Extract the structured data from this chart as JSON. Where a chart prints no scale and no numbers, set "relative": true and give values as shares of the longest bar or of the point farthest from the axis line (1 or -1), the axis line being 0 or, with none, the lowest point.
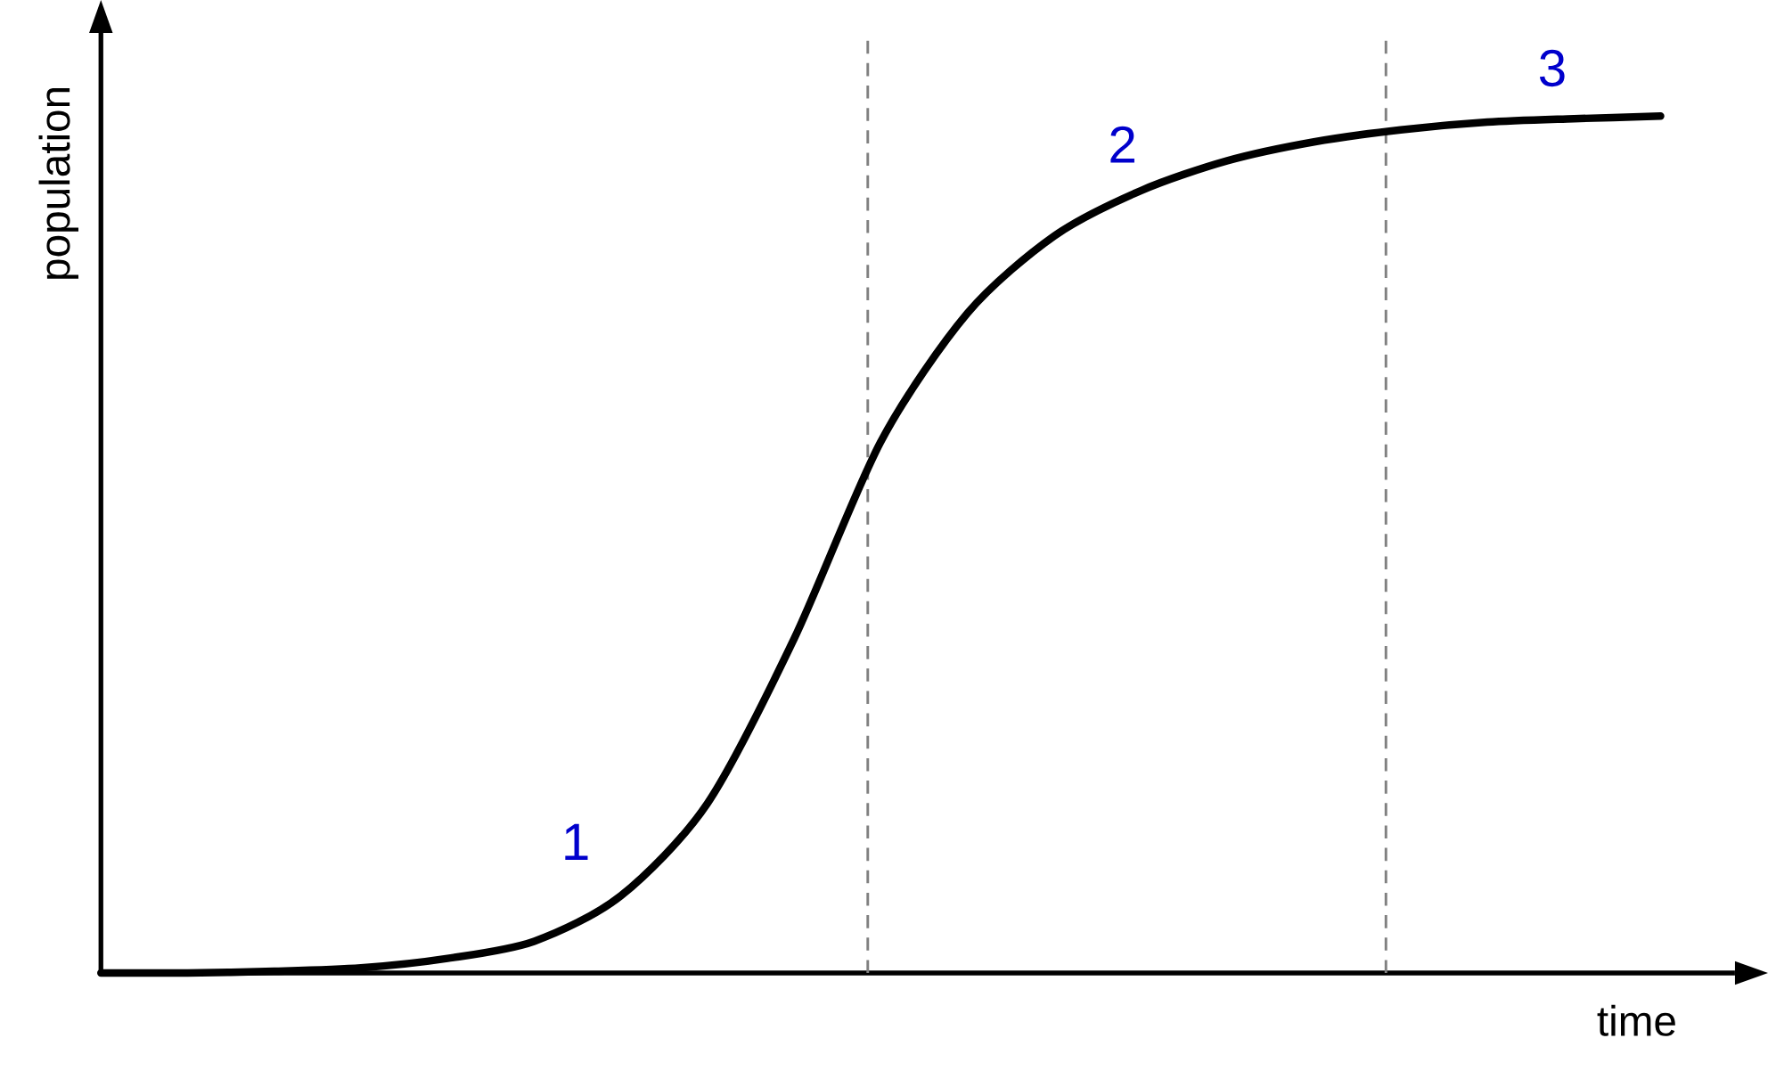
{
  "chart_data": {
    "type": "line",
    "relative": true,
    "xlabel": "time",
    "ylabel": "population",
    "color": "#000000",
    "categories": [
      null,
      null,
      null,
      null,
      null,
      null,
      null,
      null,
      null,
      null,
      null,
      null,
      null,
      null,
      null,
      null,
      null,
      null,
      null
    ],
    "values": [
      0,
      0,
      0.002,
      0.006,
      0.017,
      0.037,
      0.09,
      0.198,
      0.39,
      0.62,
      0.77,
      0.86,
      0.913,
      0.948,
      0.97,
      0.984,
      0.993,
      0.997,
      1.0
    ],
    "annotations": [
      "1",
      "2",
      "3"
    ],
    "marker": "none"
  }
}
